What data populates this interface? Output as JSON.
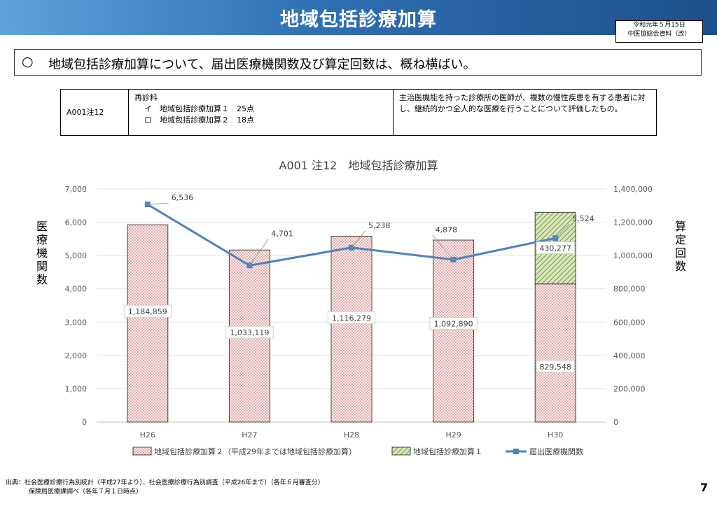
{
  "header": {
    "title": "地域包括診療加算",
    "date": "令和元年５月15日",
    "source_label": "中医協総会資料（改）"
  },
  "summary": {
    "mark": "○",
    "text": "地域包括診療加算について、届出医療機関数及び算定回数は、概ね横ばい。"
  },
  "info_table": {
    "code": "A001注12",
    "items": [
      "再診料",
      "イ　地域包括診療加算１　25点",
      "ロ　地域包括診療加算２　18点"
    ],
    "description": "主治医機能を持った診療所の医師が、複数の慢性疾患を有する患者に対し、継続的かつ全人的な医療を行うことについて評価したもの。"
  },
  "side_labels": {
    "left": [
      "医",
      "療",
      "機",
      "関",
      "数"
    ],
    "right": [
      "算",
      "定",
      "回",
      "数"
    ]
  },
  "chart_data": {
    "type": "bar",
    "title": "A001 注12　地域包括診療加算",
    "categories": [
      "H26",
      "H27",
      "H28",
      "H29",
      "H30"
    ],
    "left_axis": {
      "min": 0,
      "max": 7000,
      "ticks": [
        "0",
        "1,000",
        "2,000",
        "3,000",
        "4,000",
        "5,000",
        "6,000",
        "7,000"
      ]
    },
    "right_axis": {
      "min": 0,
      "max": 1400000,
      "ticks": [
        "0",
        "200,000",
        "400,000",
        "600,000",
        "800,000",
        "1,000,000",
        "1,200,000",
        "1,400,000"
      ]
    },
    "series": [
      {
        "name": "地域包括診療加算２（平成29年までは地域包括診療加算）",
        "type": "stacked-bar",
        "axis": "right",
        "values": [
          1184859,
          1033119,
          1116279,
          1092890,
          829548
        ],
        "labels": [
          "1,184,859",
          "1,033,119",
          "1,116,279",
          "1,092,890",
          "829,548"
        ],
        "color": "#c0504d"
      },
      {
        "name": "地域包括診療加算１",
        "type": "stacked-bar",
        "axis": "right",
        "values": [
          null,
          null,
          null,
          null,
          430277
        ],
        "labels": [
          "",
          "",
          "",
          "",
          "430,277"
        ],
        "color": "#9bbb59"
      },
      {
        "name": "届出医療機関数",
        "type": "line",
        "axis": "left",
        "values": [
          6536,
          4701,
          5238,
          4878,
          5524
        ],
        "labels": [
          "6,536",
          "4,701",
          "5,238",
          "4,878",
          "5,524"
        ],
        "color": "#4f81bd"
      }
    ],
    "legend_position": "bottom",
    "grid": true
  },
  "footer": {
    "line1": "出典：社会医療診療行為別統計（平成27年より）、社会医療診療行為別調査（平成26年まで）（各年６月審査分）",
    "line2": "保険局医療課調べ（各年７月１日時点）",
    "page_number": "7"
  }
}
